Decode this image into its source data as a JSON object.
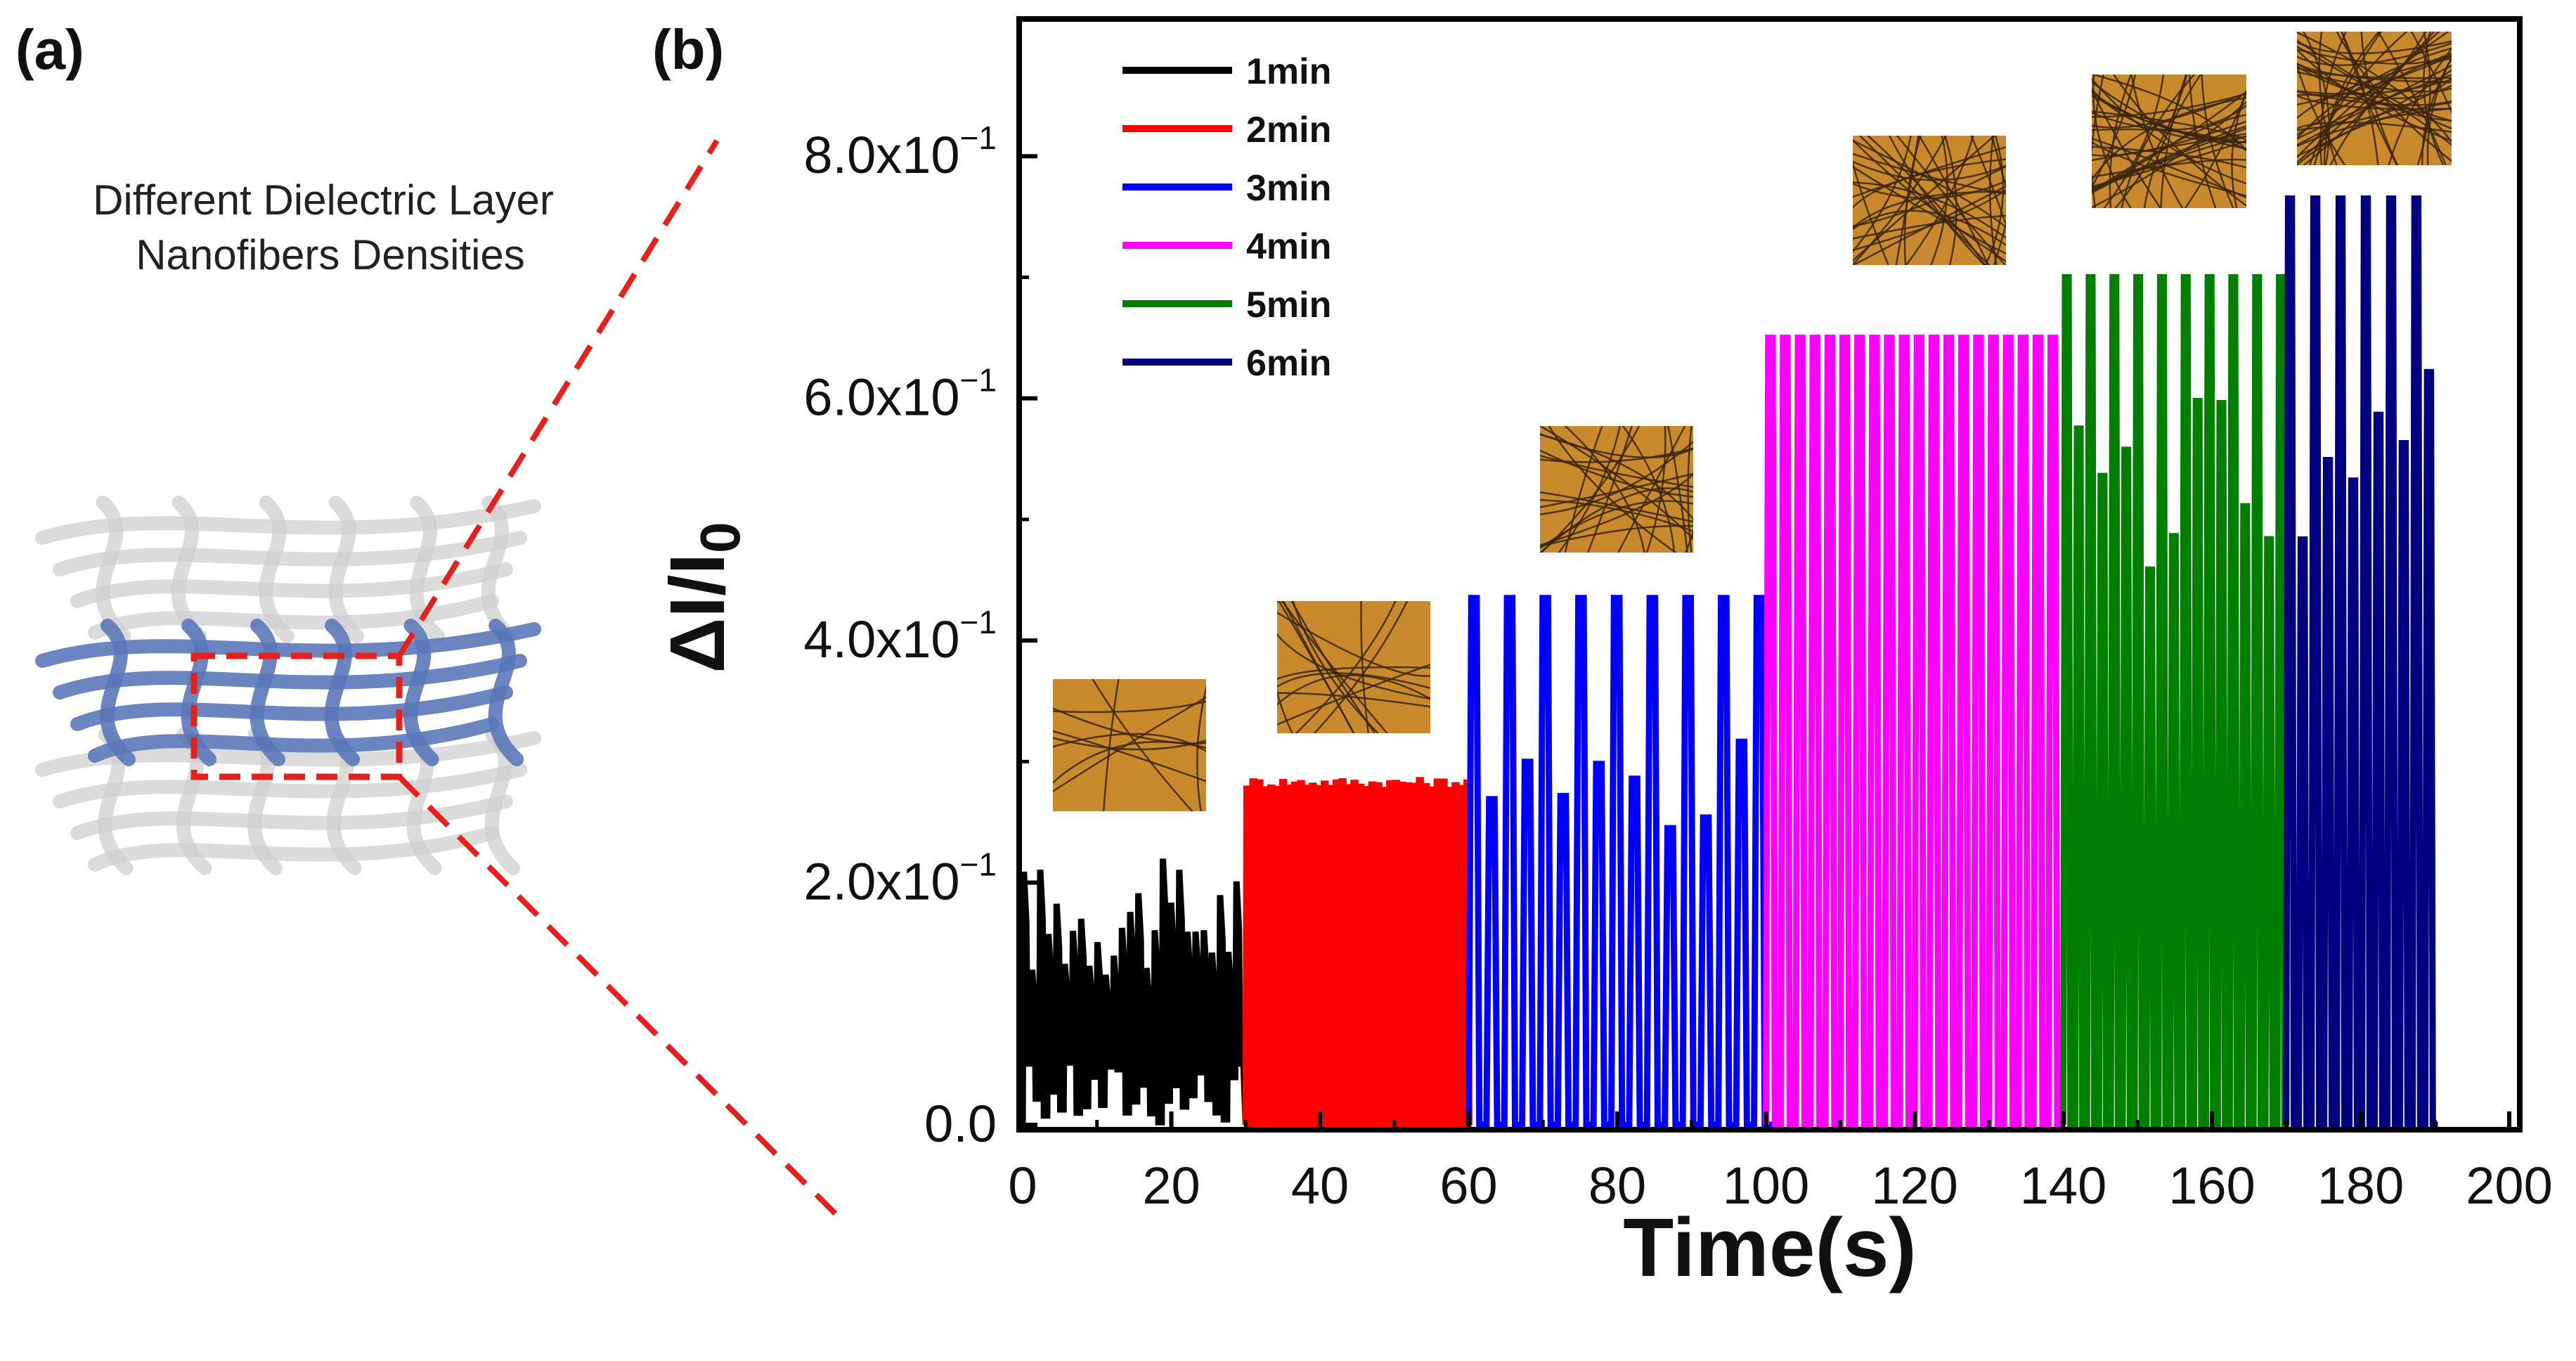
{
  "panels": {
    "a": {
      "label": "(a)",
      "caption_line1": "Different Dielectric Layer",
      "caption_line2": "Nanofibers Densities"
    },
    "b": {
      "label": "(b)"
    }
  },
  "colors": {
    "1min": "#000000",
    "2min": "#ff0000",
    "3min": "#0000ff",
    "4min": "#ff00ff",
    "5min": "#007f00",
    "6min": "#000080",
    "zoom_box": "#e8201c",
    "fiber_gray": "#cfcfcf",
    "fiber_blue": "#5a78b8",
    "micrograph_bg": "#c98a2e",
    "micrograph_fiber": "#3a2410"
  },
  "chart_data": {
    "type": "line",
    "xlabel": "Time(s)",
    "ylabel": "ΔI/I0",
    "xlim": [
      0,
      200
    ],
    "ylim": [
      0,
      0.9
    ],
    "x_ticks": [
      0,
      20,
      40,
      60,
      80,
      100,
      120,
      140,
      160,
      180,
      200
    ],
    "y_ticks": [
      {
        "value": 0.0,
        "mantissa": "0.0",
        "exponent": ""
      },
      {
        "value": 0.2,
        "mantissa": "2.0x10",
        "exponent": "−1"
      },
      {
        "value": 0.4,
        "mantissa": "4.0x10",
        "exponent": "−1"
      },
      {
        "value": 0.6,
        "mantissa": "6.0x10",
        "exponent": "−1"
      },
      {
        "value": 0.8,
        "mantissa": "8.0x10",
        "exponent": "−1"
      }
    ],
    "legend_position": "top-left",
    "series": [
      {
        "name": "1min",
        "color_key": "1min",
        "t_start": 0,
        "t_end": 30,
        "period": 1.1,
        "peak": 0.22,
        "style": "noisy"
      },
      {
        "name": "2min",
        "color_key": "2min",
        "t_start": 30,
        "t_end": 60,
        "period": 0.8,
        "peak": 0.285,
        "style": "dense"
      },
      {
        "name": "3min",
        "color_key": "3min",
        "t_start": 60,
        "t_end": 100,
        "period": 2.4,
        "peak": 0.435,
        "style": "alternating",
        "secondary_peak": 0.32
      },
      {
        "name": "4min",
        "color_key": "4min",
        "t_start": 100,
        "t_end": 140,
        "period": 2.0,
        "peak": 0.65,
        "style": "square"
      },
      {
        "name": "5min",
        "color_key": "5min",
        "t_start": 140,
        "t_end": 170,
        "period": 1.6,
        "peak": 0.7,
        "style": "alternating",
        "secondary_peak": 0.6
      },
      {
        "name": "6min",
        "color_key": "6min",
        "t_start": 170,
        "t_end": 190,
        "period": 1.7,
        "peak": 0.765,
        "style": "alternating",
        "secondary_peak": 0.63
      }
    ],
    "insets": [
      {
        "series": "1min",
        "fiber_count": 10
      },
      {
        "series": "2min",
        "fiber_count": 18
      },
      {
        "series": "3min",
        "fiber_count": 26
      },
      {
        "series": "4min",
        "fiber_count": 34
      },
      {
        "series": "5min",
        "fiber_count": 42
      },
      {
        "series": "6min",
        "fiber_count": 50
      }
    ]
  }
}
